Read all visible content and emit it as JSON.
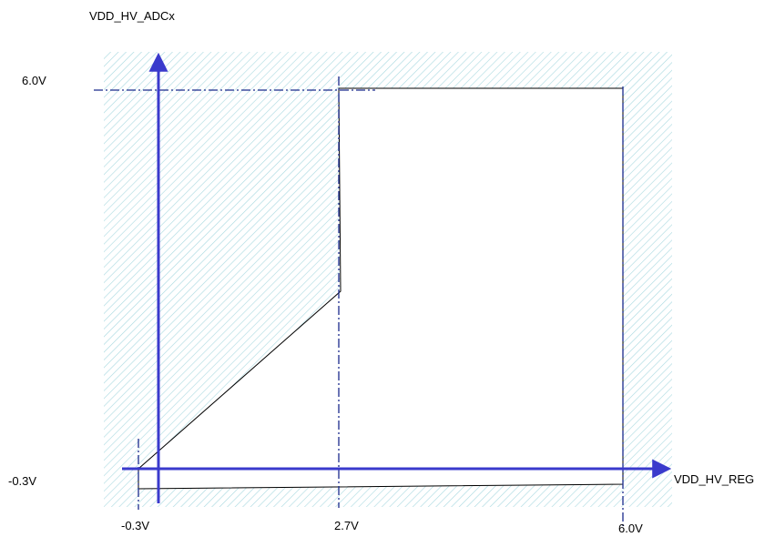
{
  "diagram": {
    "y_axis_label": "VDD_HV_ADCx",
    "x_axis_label": "VDD_HV_REG",
    "y_tick_max": "6.0V",
    "y_tick_min": "-0.3V",
    "x_tick_min": "-0.3V",
    "x_tick_mid": "2.7V",
    "x_tick_max": "6.0V",
    "colors": {
      "axis": "#3a3acc",
      "guide": "#1a2a8c",
      "hatch": "#a8d8e0",
      "boundary": "#000000"
    }
  }
}
